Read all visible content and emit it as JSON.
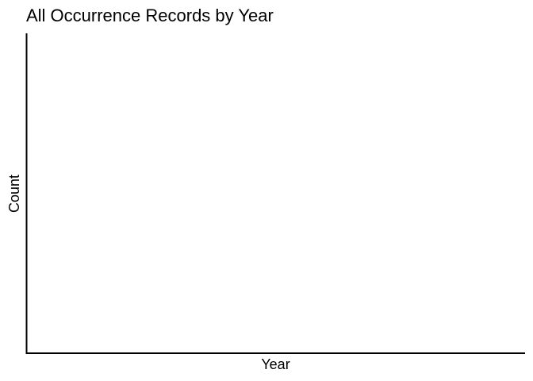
{
  "chart_data": {
    "type": "bar",
    "title": "All Occurrence Records by Year",
    "xlabel": "Year",
    "ylabel": "Count",
    "categories": [],
    "values": [],
    "grid": false,
    "legend": "none"
  },
  "style": {
    "axis_color": "#000000",
    "background": "#ffffff"
  }
}
